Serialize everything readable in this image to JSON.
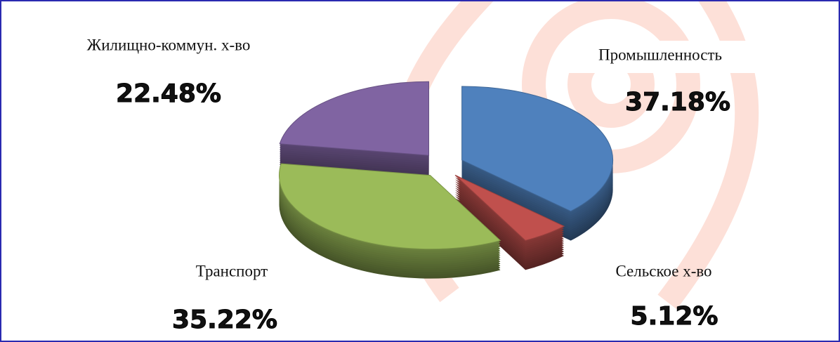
{
  "chart_data": {
    "type": "pie",
    "categories": [
      "Промышленность",
      "Сельское х-во",
      "Транспорт",
      "Жилищно-коммун. х-во"
    ],
    "values": [
      37.18,
      5.12,
      35.22,
      22.48
    ],
    "value_labels": [
      "37.18%",
      "5.12%",
      "35.22%",
      "22.48%"
    ],
    "colors": [
      "#4f81bd",
      "#c0504d",
      "#9bbb59",
      "#8064a2"
    ]
  }
}
